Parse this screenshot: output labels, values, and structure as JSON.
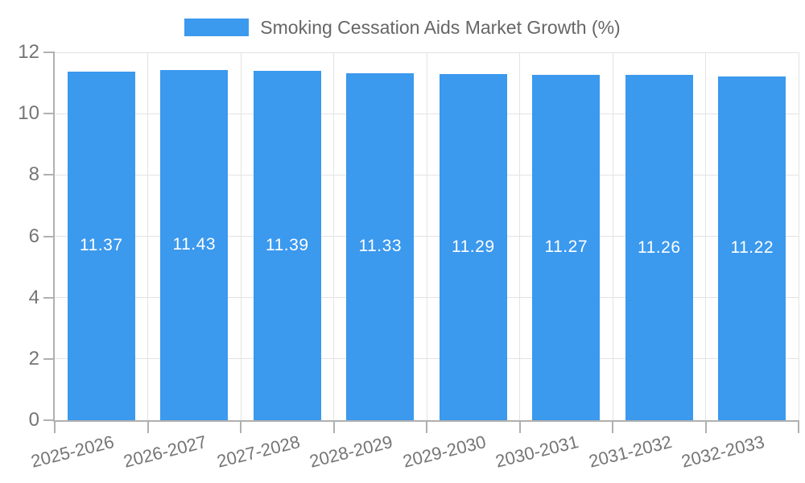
{
  "legend": {
    "label": "Smoking Cessation Aids Market Growth (%)"
  },
  "chart_data": {
    "type": "bar",
    "title": "Smoking Cessation Aids Market Growth (%)",
    "categories": [
      "2025-2026",
      "2026-2027",
      "2027-2028",
      "2028-2029",
      "2029-2030",
      "2030-2031",
      "2031-2032",
      "2032-2033"
    ],
    "values": [
      11.37,
      11.43,
      11.39,
      11.33,
      11.29,
      11.27,
      11.26,
      11.22
    ],
    "value_labels": [
      "11.37",
      "11.43",
      "11.39",
      "11.33",
      "11.29",
      "11.27",
      "11.26",
      "11.22"
    ],
    "xlabel": "",
    "ylabel": "",
    "ylim": [
      0,
      12
    ],
    "yticks": [
      0,
      2,
      4,
      6,
      8,
      10,
      12
    ],
    "grid": true,
    "legend_position": "top",
    "colors": {
      "bar": "#3B99EE",
      "grid_line": "#E3E3E3",
      "axis_line": "#B0B0B0",
      "tick_text": "#757575",
      "value_label_text": "#FFFFFF",
      "legend_text": "#666666"
    }
  }
}
